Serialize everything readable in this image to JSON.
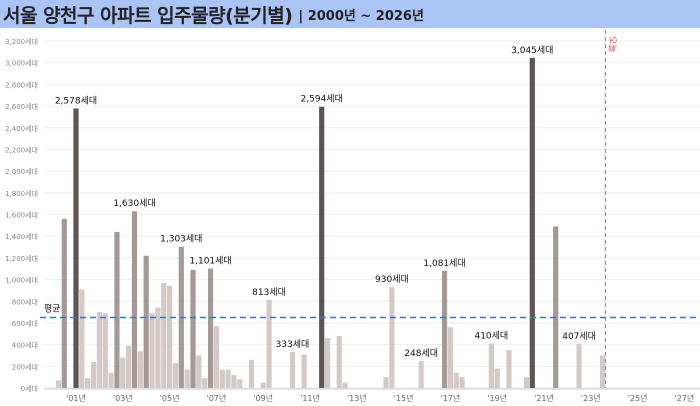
{
  "header": {
    "title": "서울 양천구 아파트 입주물량(분기별)",
    "subtitle": "| 2000년 ~ 2026년"
  },
  "chart_data": {
    "type": "bar",
    "title": "서울 양천구 아파트 입주물량(분기별)",
    "subtitle": "| 2000년 ~ 2026년",
    "unit": "세대",
    "ylim": [
      0,
      3200
    ],
    "y_ticks": [
      "0세대",
      "200세대",
      "400세대",
      "600세대",
      "800세대",
      "1,000세대",
      "1,200세대",
      "1,400세대",
      "1,600세대",
      "1,800세대",
      "2,000세대",
      "2,200세대",
      "2,400세대",
      "2,600세대",
      "2,800세대",
      "3,000세대",
      "3,200세대"
    ],
    "x_ticks": [
      "'01년",
      "'03년",
      "'05년",
      "'07년",
      "'09년",
      "'11년",
      "'13년",
      "'15년",
      "'17년",
      "'19년",
      "'21년",
      "'23년",
      "'25년",
      "'27년"
    ],
    "grid": true,
    "average": {
      "label": "평균",
      "value": 650,
      "color": "#3a6fe0"
    },
    "today": {
      "label": "오늘",
      "quarter": "2023Q4",
      "color": "#d9534f"
    },
    "colors": {
      "high": "#5e5552",
      "mid": "#a39a97",
      "low": "#d3cac7"
    },
    "bars": [
      {
        "q": "2000Q2",
        "v": 70
      },
      {
        "q": "2000Q3",
        "v": 1560
      },
      {
        "q": "2001Q1",
        "v": 2578,
        "label": "2,578세대"
      },
      {
        "q": "2001Q2",
        "v": 910
      },
      {
        "q": "2001Q3",
        "v": 90
      },
      {
        "q": "2001Q4",
        "v": 240
      },
      {
        "q": "2002Q1",
        "v": 700
      },
      {
        "q": "2002Q2",
        "v": 690
      },
      {
        "q": "2002Q3",
        "v": 140
      },
      {
        "q": "2002Q4",
        "v": 1440
      },
      {
        "q": "2003Q1",
        "v": 280
      },
      {
        "q": "2003Q2",
        "v": 390
      },
      {
        "q": "2003Q3",
        "v": 1630,
        "label": "1,630세대"
      },
      {
        "q": "2003Q4",
        "v": 340
      },
      {
        "q": "2004Q1",
        "v": 1220
      },
      {
        "q": "2004Q2",
        "v": 690
      },
      {
        "q": "2004Q3",
        "v": 740
      },
      {
        "q": "2004Q4",
        "v": 970
      },
      {
        "q": "2005Q1",
        "v": 940
      },
      {
        "q": "2005Q2",
        "v": 230
      },
      {
        "q": "2005Q3",
        "v": 1303,
        "label": "1,303세대"
      },
      {
        "q": "2005Q4",
        "v": 170
      },
      {
        "q": "2006Q1",
        "v": 1090
      },
      {
        "q": "2006Q2",
        "v": 300
      },
      {
        "q": "2006Q3",
        "v": 90
      },
      {
        "q": "2006Q4",
        "v": 1101,
        "label": "1,101세대"
      },
      {
        "q": "2007Q1",
        "v": 570
      },
      {
        "q": "2007Q2",
        "v": 170
      },
      {
        "q": "2007Q3",
        "v": 170
      },
      {
        "q": "2007Q4",
        "v": 120
      },
      {
        "q": "2008Q1",
        "v": 80
      },
      {
        "q": "2008Q3",
        "v": 260
      },
      {
        "q": "2009Q1",
        "v": 50
      },
      {
        "q": "2009Q2",
        "v": 813,
        "label": "813세대"
      },
      {
        "q": "2010Q2",
        "v": 333,
        "label": "333세대"
      },
      {
        "q": "2010Q4",
        "v": 310
      },
      {
        "q": "2011Q3",
        "v": 2594,
        "label": "2,594세대"
      },
      {
        "q": "2011Q4",
        "v": 460
      },
      {
        "q": "2012Q2",
        "v": 480
      },
      {
        "q": "2012Q3",
        "v": 50
      },
      {
        "q": "2014Q2",
        "v": 100
      },
      {
        "q": "2014Q3",
        "v": 930,
        "label": "930세대"
      },
      {
        "q": "2015Q4",
        "v": 248,
        "label": "248세대"
      },
      {
        "q": "2016Q4",
        "v": 1081,
        "label": "1,081세대"
      },
      {
        "q": "2017Q1",
        "v": 560
      },
      {
        "q": "2017Q2",
        "v": 140
      },
      {
        "q": "2017Q3",
        "v": 100
      },
      {
        "q": "2018Q4",
        "v": 410,
        "label": "410세대"
      },
      {
        "q": "2019Q1",
        "v": 180
      },
      {
        "q": "2019Q3",
        "v": 350
      },
      {
        "q": "2020Q2",
        "v": 100
      },
      {
        "q": "2020Q3",
        "v": 3045,
        "label": "3,045세대"
      },
      {
        "q": "2021Q3",
        "v": 1490
      },
      {
        "q": "2022Q3",
        "v": 407,
        "label": "407세대"
      },
      {
        "q": "2023Q3",
        "v": 300
      }
    ]
  }
}
